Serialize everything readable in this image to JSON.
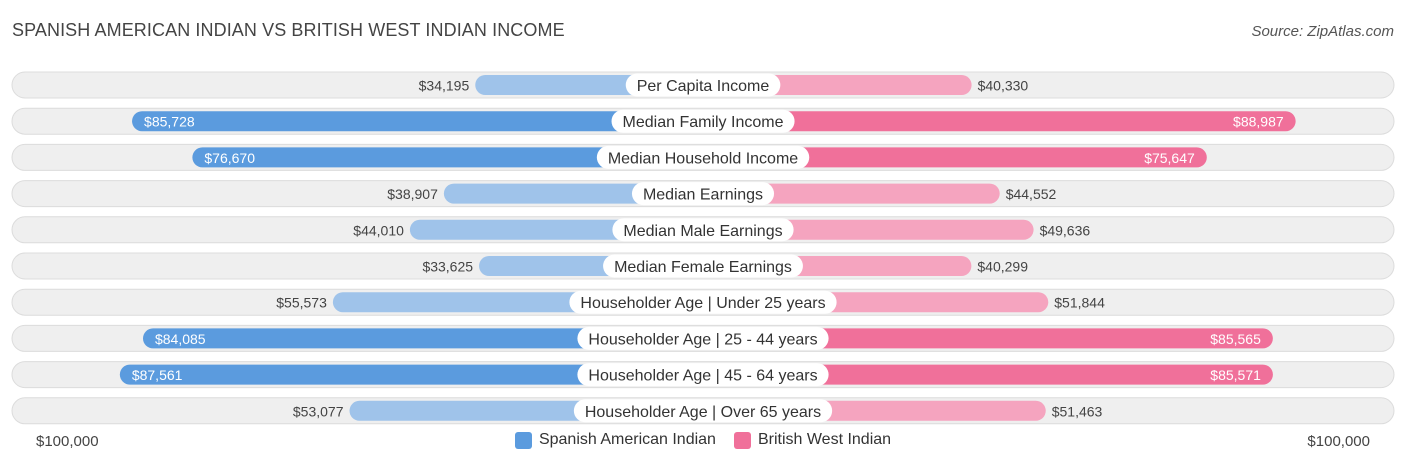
{
  "title": "SPANISH AMERICAN INDIAN VS BRITISH WEST INDIAN INCOME",
  "source": "Source: ZipAtlas.com",
  "axis": {
    "left_label": "$100,000",
    "right_label": "$100,000"
  },
  "legend": {
    "left": "Spanish American Indian",
    "right": "British West Indian"
  },
  "colors": {
    "left_strong": "#5b9bde",
    "left_light": "#9fc3ea",
    "right_strong": "#f0709a",
    "right_light": "#f5a4bf",
    "row_bg": "#efefef",
    "row_border": "#dcdcdc"
  },
  "chart_data": {
    "type": "bar",
    "orientation": "horizontal-diverging",
    "xlim": [
      0,
      100000
    ],
    "categories": [
      "Per Capita Income",
      "Median Family Income",
      "Median Household Income",
      "Median Earnings",
      "Median Male Earnings",
      "Median Female Earnings",
      "Householder Age | Under 25 years",
      "Householder Age | 25 - 44 years",
      "Householder Age | 45 - 64 years",
      "Householder Age | Over 65 years"
    ],
    "series": [
      {
        "name": "Spanish American Indian",
        "values": [
          34195,
          85728,
          76670,
          38907,
          44010,
          33625,
          55573,
          84085,
          87561,
          53077
        ],
        "labels": [
          "$34,195",
          "$85,728",
          "$76,670",
          "$38,907",
          "$44,010",
          "$33,625",
          "$55,573",
          "$84,085",
          "$87,561",
          "$53,077"
        ]
      },
      {
        "name": "British West Indian",
        "values": [
          40330,
          88987,
          75647,
          44552,
          49636,
          40299,
          51844,
          85565,
          85571,
          51463
        ],
        "labels": [
          "$40,330",
          "$88,987",
          "$75,647",
          "$44,552",
          "$49,636",
          "$40,299",
          "$51,844",
          "$85,565",
          "$85,571",
          "$51,463"
        ]
      }
    ]
  }
}
